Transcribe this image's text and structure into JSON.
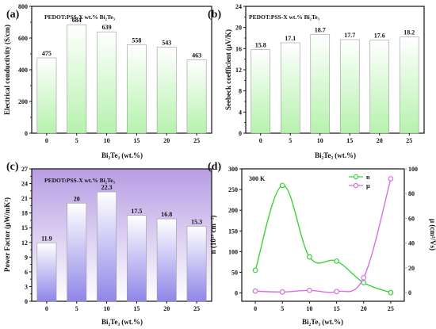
{
  "colors": {
    "green_bar_top": "#ffffff",
    "green_bar_bottom": "#b6f2ad",
    "purple_bar_top": "#ffffff",
    "purple_bar_bottom": "#8f86e8",
    "panel_c_bg_top": "#b79de3",
    "panel_c_bg_bottom": "#ffffff",
    "n_series": "#3cd23c",
    "mu_series": "#d770e3",
    "axis": "#111111"
  },
  "chart_data": [
    {
      "panel": "(a)",
      "type": "bar",
      "inner_label": "PEDOT:PSS-X wt.% Bi₂Te₃",
      "categories": [
        "0",
        "5",
        "10",
        "15",
        "20",
        "25"
      ],
      "values": [
        475,
        684,
        639,
        558,
        543,
        463
      ],
      "value_labels": [
        "475",
        "684",
        "639",
        "558",
        "543",
        "463"
      ],
      "xlabel_main": "Bi₂Te₃ ",
      "xlabel_unit": "(wt.%)",
      "ylabel": "Electrical conductivity (S/cm)",
      "ylim": [
        0,
        800
      ],
      "yticks": [
        "0",
        "200",
        "400",
        "600",
        "800"
      ],
      "ytick_values": [
        0,
        200,
        400,
        600,
        800
      ]
    },
    {
      "panel": "(b)",
      "type": "bar",
      "inner_label": "PEDOT:PSS-X wt.% Bi₂Te₃",
      "categories": [
        "0",
        "5",
        "10",
        "15",
        "20",
        "25"
      ],
      "values": [
        15.8,
        17.1,
        18.7,
        17.7,
        17.6,
        18.2
      ],
      "value_labels": [
        "15.8",
        "17.1",
        "18.7",
        "17.7",
        "17.6",
        "18.2"
      ],
      "xlabel_main": "Bi₂Te₃ ",
      "xlabel_unit": "(wt.%)",
      "ylabel": "Seebeck coefficient (μV/K)",
      "ylim": [
        0,
        24
      ],
      "yticks": [
        "0",
        "4",
        "8",
        "12",
        "16",
        "20",
        "24"
      ],
      "ytick_values": [
        0,
        4,
        8,
        12,
        16,
        20,
        24
      ]
    },
    {
      "panel": "(c)",
      "type": "bar",
      "inner_label": "PEDOT:PSS-X wt.% Bi₂Te₃",
      "categories": [
        "0",
        "5",
        "10",
        "15",
        "20",
        "25"
      ],
      "values": [
        11.9,
        20,
        22.3,
        17.5,
        16.8,
        15.3
      ],
      "value_labels": [
        "11.9",
        "20",
        "22.3",
        "17.5",
        "16.8",
        "15.3"
      ],
      "xlabel_main": "Bi₂Te₃ ",
      "xlabel_unit": "(wt.%)",
      "ylabel": "Power Factor (μW/mK²)",
      "ylim": [
        0,
        27
      ],
      "yticks": [
        "0",
        "3",
        "6",
        "9",
        "12",
        "15",
        "18",
        "21",
        "24",
        "27"
      ],
      "ytick_values": [
        0,
        3,
        6,
        9,
        12,
        15,
        18,
        21,
        24,
        27
      ]
    },
    {
      "panel": "(d)",
      "type": "line",
      "inner_label": "300 K",
      "x": [
        0,
        5,
        10,
        15,
        20,
        25
      ],
      "series": [
        {
          "name": "n",
          "axis": "left",
          "values": [
            55,
            260,
            87,
            77,
            25,
            1
          ]
        },
        {
          "name": "μ",
          "axis": "right",
          "values": [
            1.2,
            0.5,
            1.8,
            0.8,
            12,
            92
          ]
        }
      ],
      "xticks": [
        "0",
        "5",
        "10",
        "15",
        "20",
        "25"
      ],
      "xlabel_main": "Bi₂Te₃ ",
      "xlabel_unit": "(wt.%)",
      "ylabel_left": "n (10¹⁹ cm⁻³)",
      "ylabel_right": "μ (cm²/Vs)",
      "ylim_left": [
        -20,
        300
      ],
      "ylim_right": [
        -7,
        100
      ],
      "yticks_left": [
        "0",
        "50",
        "100",
        "150",
        "200",
        "250",
        "300"
      ],
      "ytick_left_values": [
        0,
        50,
        100,
        150,
        200,
        250,
        300
      ],
      "yticks_right": [
        "0",
        "20",
        "40",
        "60",
        "80",
        "100"
      ],
      "ytick_right_values": [
        0,
        20,
        40,
        60,
        80,
        100
      ],
      "legend_position": "top-right"
    }
  ]
}
